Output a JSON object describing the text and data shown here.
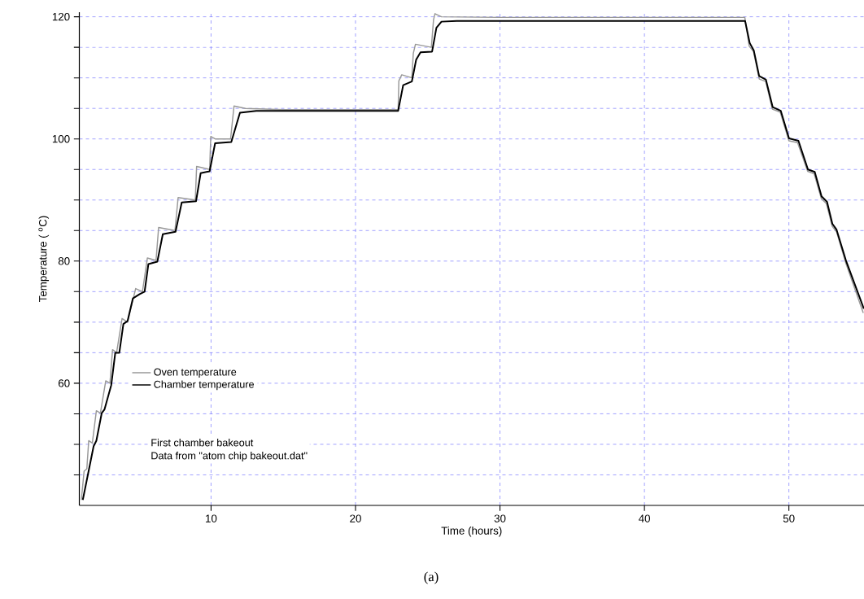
{
  "chart_data": {
    "type": "line",
    "xlabel": "Time (hours)",
    "ylabel": "Temperature ( $^{o}$C)",
    "annotations": [
      "First chamber bakeout",
      "Data from \"atom chip bakeout.dat\"",
      "(a)"
    ],
    "xlim": [
      0.88,
      55.2
    ],
    "ylim": [
      40,
      120.75
    ],
    "xticks": [
      10,
      20,
      30,
      40,
      50
    ],
    "yticks": [
      {
        "value": 45,
        "label": null
      },
      {
        "value": 50,
        "label": null
      },
      {
        "value": 55,
        "label": null
      },
      60,
      {
        "value": 65,
        "label": null
      },
      {
        "value": 70,
        "label": null
      },
      {
        "value": 75,
        "label": null
      },
      80,
      {
        "value": 85,
        "label": null
      },
      {
        "value": 90,
        "label": null
      },
      {
        "value": 95,
        "label": null
      },
      100,
      {
        "value": 105,
        "label": null
      },
      {
        "value": 110,
        "label": null
      },
      {
        "value": 115,
        "label": null
      },
      120
    ],
    "grid": true,
    "legend": "bottom left",
    "line_style": "solid",
    "series": [
      {
        "name": "Oven temperature",
        "color": "#999999",
        "x": [
          1.02,
          1.21,
          1.4,
          1.53,
          1.78,
          2.06,
          2.34,
          2.71,
          3.0,
          3.18,
          3.46,
          3.84,
          4.22,
          4.78,
          5.25,
          5.59,
          6.19,
          6.37,
          7.5,
          7.72,
          8.91,
          9.0,
          9.9,
          9.98,
          10.28,
          11.35,
          11.59,
          12.38,
          15,
          20,
          22.95,
          23.0,
          23.2,
          23.9,
          24.0,
          24.15,
          25.25,
          25.4,
          25.5,
          25.95,
          30,
          40,
          46.95,
          47.25,
          47.55,
          47.95,
          48.4,
          48.85,
          49.4,
          50.0,
          50.6,
          51.3,
          51.75,
          52.25,
          52.6,
          53.0,
          53.3,
          53.95,
          55.15
        ],
        "values": [
          40.9,
          45.6,
          46.0,
          50.6,
          50.2,
          55.5,
          55.1,
          60.4,
          60.0,
          65.5,
          65.0,
          70.6,
          70.0,
          75.5,
          75.0,
          80.5,
          80.1,
          85.5,
          85.0,
          90.4,
          90.0,
          95.5,
          95.0,
          100.4,
          100.0,
          100.0,
          105.4,
          105.0,
          104.8,
          104.8,
          104.8,
          109.5,
          110.5,
          110.0,
          114.0,
          115.5,
          115.0,
          119.5,
          120.5,
          120.0,
          119.9,
          119.9,
          119.9,
          115.2,
          114.3,
          109.8,
          109.4,
          104.9,
          104.4,
          99.7,
          99.4,
          94.7,
          94.3,
          90.2,
          89.4,
          85.7,
          84.8,
          79.6,
          71.5
        ]
      },
      {
        "name": "Chamber temperature",
        "color": "#000000",
        "x": [
          1.12,
          1.59,
          1.87,
          2.06,
          2.43,
          2.62,
          3.09,
          3.37,
          3.65,
          3.93,
          4.22,
          4.59,
          5.06,
          5.4,
          5.66,
          6.28,
          6.66,
          7.54,
          7.97,
          8.96,
          9.28,
          9.9,
          10.28,
          11.4,
          12.0,
          13.13,
          16,
          20,
          22.95,
          23.3,
          23.9,
          24.2,
          24.5,
          25.3,
          25.6,
          25.95,
          27,
          35,
          46.97,
          47.29,
          47.57,
          47.94,
          48.41,
          48.88,
          49.44,
          50.01,
          50.66,
          51.32,
          51.79,
          52.26,
          52.64,
          53.01,
          53.29,
          53.95,
          55.19
        ],
        "values": [
          40.9,
          46.4,
          49.7,
          50.6,
          55.1,
          55.7,
          59.7,
          65.0,
          65.0,
          69.7,
          70.2,
          73.9,
          74.6,
          75.0,
          79.5,
          79.9,
          84.4,
          84.8,
          89.6,
          89.8,
          94.4,
          94.7,
          99.3,
          99.5,
          104.3,
          104.6,
          104.6,
          104.6,
          104.6,
          108.8,
          109.4,
          113.0,
          114.2,
          114.3,
          118.2,
          119.2,
          119.3,
          119.3,
          119.3,
          115.7,
          114.5,
          110.3,
          109.7,
          105.2,
          104.6,
          100.1,
          99.7,
          95.0,
          94.6,
          90.6,
          89.7,
          86.1,
          85.2,
          80.1,
          72.2
        ]
      }
    ]
  }
}
